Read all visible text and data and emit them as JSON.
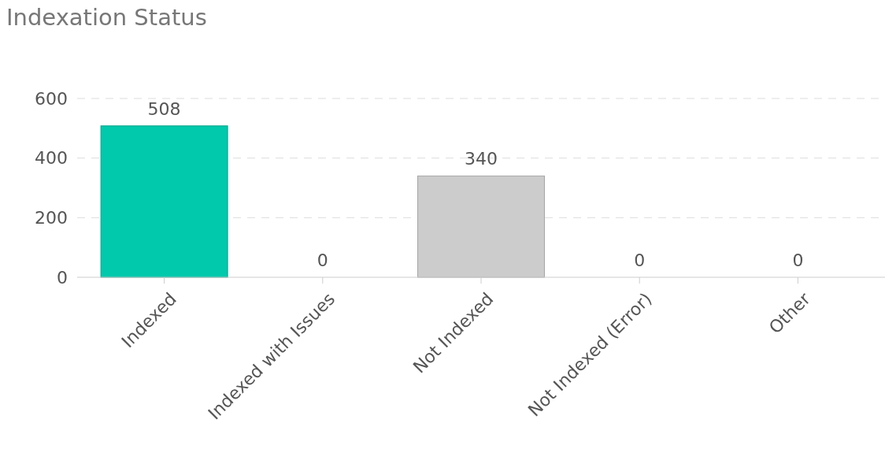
{
  "chart_data": {
    "type": "bar",
    "title": "Indexation Status",
    "categories": [
      "Indexed",
      "Indexed with Issues",
      "Not Indexed",
      "Not Indexed (Error)",
      "Other"
    ],
    "values": [
      508,
      0,
      340,
      0,
      0
    ],
    "colors": [
      "#00c9ac",
      null,
      "#cccccc",
      null,
      null
    ],
    "ylim": [
      0,
      600
    ],
    "yticks": [
      0,
      200,
      400,
      600
    ],
    "grid": "y",
    "data_labels": true
  }
}
